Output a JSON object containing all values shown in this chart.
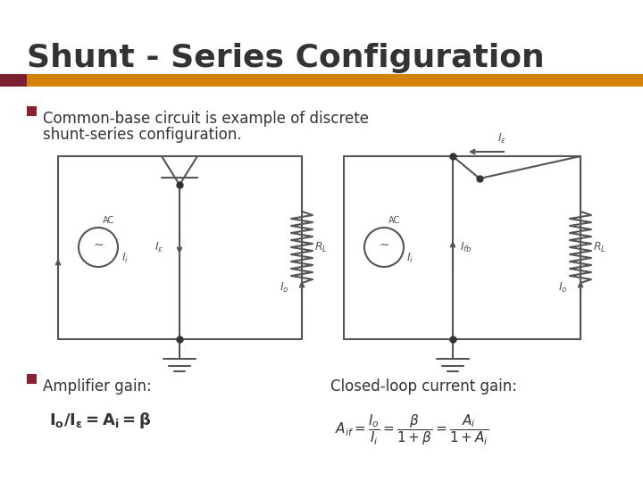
{
  "title": "Shunt - Series Configuration",
  "title_color": "#333333",
  "title_fontsize": 26,
  "accent_dark": "#7b2030",
  "accent_orange": "#d4820a",
  "bullet_color": "#8b2030",
  "text_color": "#333333",
  "bg_color": "#ffffff",
  "circuit_color": "#555555",
  "circuit_lw": 1.5,
  "bullet_text1": "Common-base circuit is example of discrete\nshunt-series configuration.",
  "bullet_text2": "Amplifier gain:",
  "closed_loop_text": "Closed-loop current gain:"
}
